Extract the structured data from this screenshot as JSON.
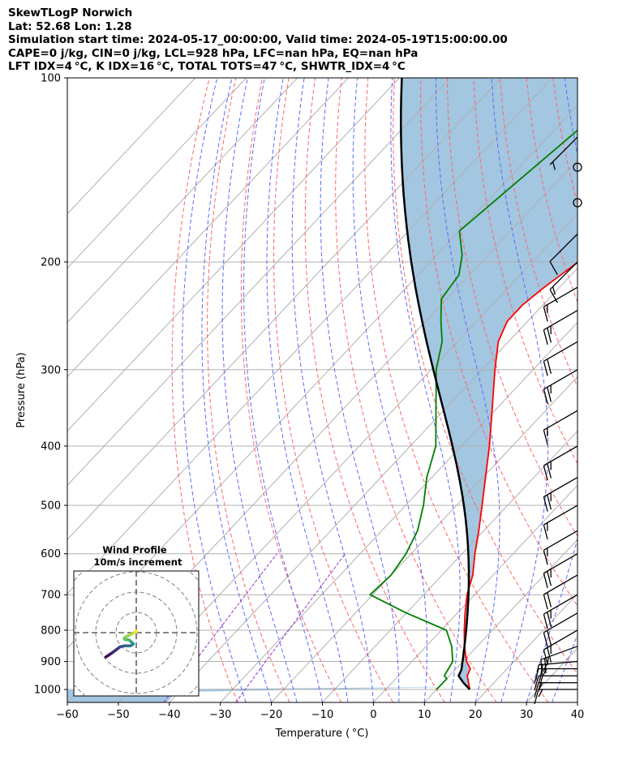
{
  "header": {
    "line1": "SkewTLogP Norwich",
    "line2": "Lat: 52.68   Lon: 1.28",
    "line3": "Simulation start time: 2024-05-17_00:00:00, Valid time: 2024-05-19T15:00:00.00",
    "line4": "CAPE=0 j/kg, CIN=0 j/kg, LCL=928 hPa, LFC=nan hPa, EQ=nan hPa",
    "line5": "LFT IDX=4 °C, K IDX=16 °C, TOTAL TOTS=47 °C, SHWTR_IDX=4 °C"
  },
  "chart_data": {
    "type": "skew-t log-p",
    "xlabel": "Temperature ( °C)",
    "ylabel": "Pressure (hPa)",
    "xlim": [
      -60,
      40
    ],
    "ylim": [
      1050,
      100
    ],
    "x_ticks": [
      -60,
      -50,
      -40,
      -30,
      -20,
      -10,
      0,
      10,
      20,
      30,
      40
    ],
    "x_tick_labels": [
      "−60",
      "−50",
      "−40",
      "−30",
      "−20",
      "−10",
      "0",
      "10",
      "20",
      "30",
      "40"
    ],
    "y_ticks": [
      1000,
      900,
      800,
      700,
      600,
      500,
      400,
      300,
      200,
      100
    ],
    "y_tick_labels": [
      "1000",
      "900",
      "800",
      "700",
      "600",
      "500",
      "400",
      "300",
      "200",
      "100"
    ],
    "grid": true,
    "series": [
      {
        "role": "temperature",
        "color": "#ff0000",
        "points": [
          {
            "p": 1000,
            "t": 16.5
          },
          {
            "p": 950,
            "t": 13.5
          },
          {
            "p": 925,
            "t": 12.8
          },
          {
            "p": 900,
            "t": 10.7
          },
          {
            "p": 850,
            "t": 7.5
          },
          {
            "p": 800,
            "t": 4.5
          },
          {
            "p": 750,
            "t": 1.5
          },
          {
            "p": 700,
            "t": -1.5
          },
          {
            "p": 650,
            "t": -4.0
          },
          {
            "p": 600,
            "t": -7.5
          },
          {
            "p": 550,
            "t": -11.0
          },
          {
            "p": 500,
            "t": -15.0
          },
          {
            "p": 450,
            "t": -19.5
          },
          {
            "p": 400,
            "t": -24.5
          },
          {
            "p": 350,
            "t": -30.5
          },
          {
            "p": 300,
            "t": -37.5
          },
          {
            "p": 270,
            "t": -42.0
          },
          {
            "p": 250,
            "t": -44.0
          },
          {
            "p": 235,
            "t": -44.0
          },
          {
            "p": 220,
            "t": -43.0
          },
          {
            "p": 200,
            "t": -41.0
          },
          {
            "p": 180,
            "t": -39.0
          },
          {
            "p": 165,
            "t": -39.0
          },
          {
            "p": 150,
            "t": -39.5
          },
          {
            "p": 130,
            "t": -40.0
          },
          {
            "p": 115,
            "t": -40.0
          },
          {
            "p": 100,
            "t": -40.5
          }
        ]
      },
      {
        "role": "dewpoint",
        "color": "#008000",
        "points": [
          {
            "p": 1000,
            "t": 10.0
          },
          {
            "p": 960,
            "t": 10.0
          },
          {
            "p": 950,
            "t": 9.0
          },
          {
            "p": 900,
            "t": 8.0
          },
          {
            "p": 850,
            "t": 5.0
          },
          {
            "p": 800,
            "t": 1.0
          },
          {
            "p": 750,
            "t": -10.0
          },
          {
            "p": 700,
            "t": -20.5
          },
          {
            "p": 650,
            "t": -20.0
          },
          {
            "p": 600,
            "t": -21.0
          },
          {
            "p": 550,
            "t": -23.0
          },
          {
            "p": 500,
            "t": -26.5
          },
          {
            "p": 450,
            "t": -31.0
          },
          {
            "p": 400,
            "t": -35.0
          },
          {
            "p": 350,
            "t": -41.5
          },
          {
            "p": 300,
            "t": -49.0
          },
          {
            "p": 270,
            "t": -53.0
          },
          {
            "p": 250,
            "t": -57.0
          },
          {
            "p": 230,
            "t": -61.0
          },
          {
            "p": 210,
            "t": -62.0
          },
          {
            "p": 195,
            "t": -65.0
          },
          {
            "p": 178,
            "t": -70.0
          },
          {
            "p": 100,
            "t": -63.0
          }
        ]
      },
      {
        "role": "parcel",
        "color": "#000000",
        "points": [
          {
            "p": 1000,
            "t": 16.5
          },
          {
            "p": 975,
            "t": 14.0
          },
          {
            "p": 950,
            "t": 11.8
          },
          {
            "p": 928,
            "t": 11.2
          }
        ],
        "moist_from_p": 928
      }
    ],
    "wind_barbs": [
      {
        "p": 1000,
        "speed": 15,
        "dir": 270
      },
      {
        "p": 975,
        "speed": 15,
        "dir": 270
      },
      {
        "p": 950,
        "speed": 20,
        "dir": 270
      },
      {
        "p": 925,
        "speed": 25,
        "dir": 270
      },
      {
        "p": 900,
        "speed": 25,
        "dir": 265
      },
      {
        "p": 850,
        "speed": 25,
        "dir": 250
      },
      {
        "p": 800,
        "speed": 25,
        "dir": 240
      },
      {
        "p": 750,
        "speed": 20,
        "dir": 240
      },
      {
        "p": 700,
        "speed": 25,
        "dir": 240
      },
      {
        "p": 650,
        "speed": 20,
        "dir": 240
      },
      {
        "p": 600,
        "speed": 25,
        "dir": 240
      },
      {
        "p": 550,
        "speed": 15,
        "dir": 240
      },
      {
        "p": 500,
        "speed": 15,
        "dir": 240
      },
      {
        "p": 450,
        "speed": 25,
        "dir": 240
      },
      {
        "p": 400,
        "speed": 25,
        "dir": 240
      },
      {
        "p": 350,
        "speed": 15,
        "dir": 240
      },
      {
        "p": 300,
        "speed": 25,
        "dir": 240
      },
      {
        "p": 270,
        "speed": 20,
        "dir": 240
      },
      {
        "p": 240,
        "speed": 25,
        "dir": 240
      },
      {
        "p": 220,
        "speed": 15,
        "dir": 240
      },
      {
        "p": 200,
        "speed": 15,
        "dir": 225
      },
      {
        "p": 180,
        "speed": 10,
        "dir": 225
      },
      {
        "p": 160,
        "speed": 0,
        "dir": 0
      },
      {
        "p": 140,
        "speed": 0,
        "dir": 0
      },
      {
        "p": 125,
        "speed": 5,
        "dir": 225
      }
    ],
    "hodograph": {
      "title": "Wind Profile",
      "subtitle": "10m/s increment",
      "rings": [
        10,
        20,
        30,
        40
      ],
      "points": [
        {
          "u": -15.0,
          "v": -12.0
        },
        {
          "u": -13.5,
          "v": -11.0
        },
        {
          "u": -12.0,
          "v": -10.0
        },
        {
          "u": -10.0,
          "v": -8.5
        },
        {
          "u": -8.0,
          "v": -7.0
        },
        {
          "u": -6.0,
          "v": -6.5
        },
        {
          "u": -4.5,
          "v": -6.5
        },
        {
          "u": -3.0,
          "v": -6.5
        },
        {
          "u": -2.0,
          "v": -6.0
        },
        {
          "u": -1.5,
          "v": -5.5
        },
        {
          "u": -2.5,
          "v": -4.5
        },
        {
          "u": -3.0,
          "v": -4.0
        },
        {
          "u": -4.0,
          "v": -3.5
        },
        {
          "u": -5.5,
          "v": -3.5
        },
        {
          "u": -6.0,
          "v": -2.8
        },
        {
          "u": -5.0,
          "v": -2.0
        },
        {
          "u": -3.0,
          "v": -1.0
        },
        {
          "u": -1.0,
          "v": 0.0
        },
        {
          "u": 0.0,
          "v": 0.5
        },
        {
          "u": 0.0,
          "v": 1.0
        }
      ]
    }
  }
}
